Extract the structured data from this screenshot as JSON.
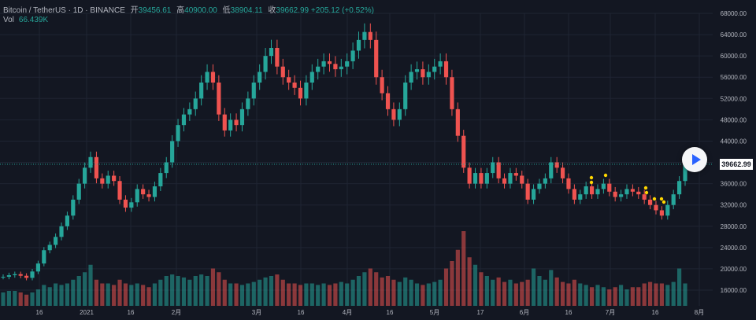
{
  "legend": {
    "symbol": "Bitcoin / TetherUS · 1D · BINANCE",
    "open_label": "开",
    "open": "39456.61",
    "high_label": "高",
    "high": "40900.00",
    "low_label": "低",
    "low": "38904.11",
    "close_label": "收",
    "close": "39662.99",
    "change": "+205.12 (+0.52%)"
  },
  "volume": {
    "label": "Vol",
    "value": "66.439K"
  },
  "last_price_tag": "39662.99",
  "colors": {
    "up": "#26a69a",
    "down": "#ef5350",
    "background": "#131722",
    "grid": "#1f2433",
    "text": "#b2b5be",
    "accent": "#2962ff"
  },
  "chart_data": {
    "type": "candlestick",
    "y_ticks": [
      "68000.00",
      "64000.00",
      "60000.00",
      "56000.00",
      "52000.00",
      "48000.00",
      "44000.00",
      "40000.00",
      "36000.00",
      "32000.00",
      "28000.00",
      "24000.00",
      "20000.00",
      "16000.00"
    ],
    "x_ticks": [
      "16",
      "2021",
      "16",
      "2月",
      "3月",
      "16",
      "4月",
      "16",
      "5月",
      "17",
      "6月",
      "16",
      "7月",
      "16",
      "8月"
    ],
    "ylim": [
      15000,
      69000
    ],
    "last_price": 39662.99,
    "price_path": [
      18500,
      18800,
      19000,
      18700,
      18300,
      19500,
      21000,
      23500,
      24500,
      26000,
      28000,
      30000,
      33000,
      36000,
      39000,
      41000,
      37000,
      36000,
      37500,
      36500,
      33000,
      31500,
      32500,
      35000,
      34000,
      33500,
      35500,
      38000,
      40000,
      44000,
      47000,
      49000,
      50000,
      52000,
      55000,
      57000,
      55000,
      49000,
      46000,
      48000,
      47000,
      50000,
      52000,
      55000,
      57000,
      60000,
      61500,
      58000,
      56000,
      55000,
      54000,
      52000,
      55000,
      57000,
      58000,
      59000,
      58500,
      57500,
      58000,
      59000,
      61000,
      63000,
      64500,
      63000,
      56000,
      53000,
      50000,
      48000,
      50000,
      55000,
      57000,
      57500,
      56000,
      57000,
      58000,
      59000,
      56000,
      50000,
      45000,
      39000,
      36000,
      38000,
      36000,
      38000,
      40000,
      37000,
      36000,
      38000,
      37500,
      36000,
      33000,
      35000,
      36000,
      37000,
      40000,
      39000,
      37000,
      35000,
      33000,
      34000,
      35500,
      34000,
      35000,
      36000,
      34500,
      33500,
      34000,
      35000,
      34500,
      34000,
      33000,
      32000,
      31000,
      30000,
      32000,
      34000,
      36500,
      39663
    ],
    "volume_levels": [
      0.18,
      0.2,
      0.2,
      0.18,
      0.15,
      0.18,
      0.22,
      0.28,
      0.25,
      0.3,
      0.28,
      0.3,
      0.35,
      0.4,
      0.45,
      0.55,
      0.35,
      0.3,
      0.3,
      0.28,
      0.35,
      0.3,
      0.28,
      0.3,
      0.28,
      0.25,
      0.3,
      0.35,
      0.4,
      0.42,
      0.4,
      0.38,
      0.35,
      0.4,
      0.42,
      0.4,
      0.5,
      0.45,
      0.35,
      0.3,
      0.3,
      0.28,
      0.3,
      0.32,
      0.35,
      0.38,
      0.4,
      0.42,
      0.35,
      0.3,
      0.3,
      0.28,
      0.3,
      0.3,
      0.28,
      0.3,
      0.28,
      0.3,
      0.32,
      0.3,
      0.35,
      0.4,
      0.45,
      0.5,
      0.45,
      0.38,
      0.4,
      0.35,
      0.32,
      0.38,
      0.35,
      0.3,
      0.28,
      0.3,
      0.32,
      0.35,
      0.5,
      0.6,
      0.75,
      1.0,
      0.65,
      0.55,
      0.45,
      0.4,
      0.35,
      0.38,
      0.32,
      0.35,
      0.3,
      0.32,
      0.35,
      0.5,
      0.4,
      0.35,
      0.48,
      0.38,
      0.32,
      0.3,
      0.35,
      0.3,
      0.28,
      0.25,
      0.28,
      0.25,
      0.22,
      0.25,
      0.28,
      0.22,
      0.25,
      0.25,
      0.3,
      0.32,
      0.3,
      0.3,
      0.28,
      0.32,
      0.5,
      0.3
    ]
  }
}
